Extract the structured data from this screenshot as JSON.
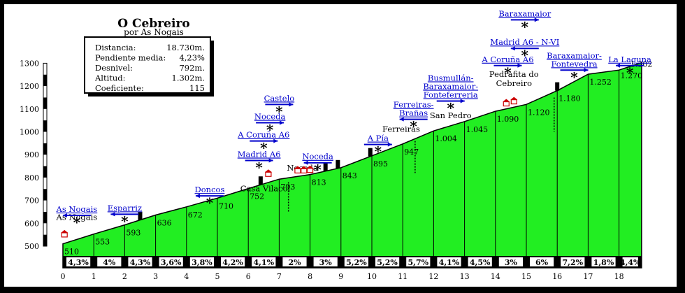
{
  "title": "O Cebreiro",
  "subtitle": "por As Nogais",
  "stats": [
    {
      "label": "Distancia:",
      "value": "18.730m."
    },
    {
      "label": "Pendiente media:",
      "value": "4,23%"
    },
    {
      "label": "Desnivel:",
      "value": "792m."
    },
    {
      "label": "Altitud:",
      "value": "1.302m."
    },
    {
      "label": "Coeficiente:",
      "value": "115"
    }
  ],
  "colors": {
    "background": "#000000",
    "panel": "#ffffff",
    "profile_fill": "#22ee22",
    "profile_stroke": "#000000",
    "link_blue": "#0000cc",
    "gradient_bar": "#000000",
    "gradient_box": "#ffffff"
  },
  "chart_data": {
    "type": "area",
    "title": "O Cebreiro",
    "xlabel": "",
    "ylabel": "",
    "xlim": [
      0,
      19
    ],
    "ylim": [
      500,
      1300
    ],
    "x_ticks": [
      "0",
      "1",
      "2",
      "3",
      "4",
      "5",
      "6",
      "7",
      "8",
      "9",
      "10",
      "11",
      "12",
      "13",
      "14",
      "15",
      "16",
      "17",
      "18"
    ],
    "y_ticks": [
      "500",
      "600",
      "700",
      "800",
      "900",
      "1000",
      "1100",
      "1200",
      "1300"
    ],
    "profile": [
      {
        "x": 0,
        "y": 510
      },
      {
        "x": 1,
        "y": 553
      },
      {
        "x": 2,
        "y": 593
      },
      {
        "x": 3,
        "y": 636
      },
      {
        "x": 4,
        "y": 672
      },
      {
        "x": 5,
        "y": 710
      },
      {
        "x": 6,
        "y": 752
      },
      {
        "x": 7,
        "y": 793
      },
      {
        "x": 8,
        "y": 813
      },
      {
        "x": 9,
        "y": 843
      },
      {
        "x": 10,
        "y": 895
      },
      {
        "x": 11,
        "y": 947
      },
      {
        "x": 12,
        "y": 1004
      },
      {
        "x": 13,
        "y": 1045
      },
      {
        "x": 14,
        "y": 1090
      },
      {
        "x": 15,
        "y": 1120
      },
      {
        "x": 16,
        "y": 1180
      },
      {
        "x": 17,
        "y": 1252
      },
      {
        "x": 18,
        "y": 1270
      },
      {
        "x": 18.73,
        "y": 1302
      }
    ],
    "point_labels": [
      "510",
      "553",
      "593",
      "636",
      "672",
      "710",
      "752",
      "793",
      "813",
      "843",
      "895",
      "947",
      "1.004",
      "1.045",
      "1.090",
      "1.120",
      "1.180",
      "1.252",
      "1.270",
      "1.302"
    ],
    "gradients": [
      {
        "km": 0,
        "label": "4,3%"
      },
      {
        "km": 1,
        "label": "4%"
      },
      {
        "km": 2,
        "label": "4,3%"
      },
      {
        "km": 3,
        "label": "3,6%"
      },
      {
        "km": 4,
        "label": "3,8%"
      },
      {
        "km": 5,
        "label": "4,2%"
      },
      {
        "km": 6,
        "label": "4,1%"
      },
      {
        "km": 7,
        "label": "2%"
      },
      {
        "km": 8,
        "label": "3%"
      },
      {
        "km": 9,
        "label": "5,2%"
      },
      {
        "km": 10,
        "label": "5,2%"
      },
      {
        "km": 11,
        "label": "5,7%"
      },
      {
        "km": 12,
        "label": "4,1%"
      },
      {
        "km": 13,
        "label": "4,5%"
      },
      {
        "km": 14,
        "label": "3%"
      },
      {
        "km": 15,
        "label": "6%"
      },
      {
        "km": 16,
        "label": "7,2%"
      },
      {
        "km": 17,
        "label": "1,8%"
      },
      {
        "km": 18,
        "label": "4,4%"
      }
    ],
    "places": [
      {
        "name": "As Nogais",
        "km": 0.45,
        "elev": 615
      },
      {
        "name": "Casa Vilacol",
        "km": 6.55,
        "elev": 740
      },
      {
        "name": "Noceda",
        "km": 7.75,
        "elev": 830
      },
      {
        "name": "Ferreiras",
        "km": 10.95,
        "elev": 1000
      },
      {
        "name": "San Pedro",
        "km": 12.55,
        "elev": 1060
      },
      {
        "name": "Pedrafita do Cebreiro",
        "km": 14.6,
        "elev": 1240
      }
    ],
    "links": [
      {
        "lines": [
          "As Nogais"
        ],
        "km": 0.45,
        "base_elev": 650,
        "arrow": "left"
      },
      {
        "lines": [
          "Esparriz"
        ],
        "km": 2.0,
        "base_elev": 655,
        "arrow": "left"
      },
      {
        "lines": [
          "Doncos"
        ],
        "km": 4.75,
        "base_elev": 735,
        "arrow": "left"
      },
      {
        "lines": [
          "Madrid A6"
        ],
        "km": 6.35,
        "base_elev": 890,
        "arrow": "right"
      },
      {
        "lines": [
          "A Coruña A6"
        ],
        "km": 6.5,
        "base_elev": 975,
        "arrow": "right"
      },
      {
        "lines": [
          "Noceda"
        ],
        "km": 6.7,
        "base_elev": 1055,
        "arrow": "right"
      },
      {
        "lines": [
          "Castelo"
        ],
        "km": 7.0,
        "base_elev": 1135,
        "arrow": "right"
      },
      {
        "lines": [
          "Noceda"
        ],
        "km": 8.25,
        "base_elev": 880,
        "arrow": "left"
      },
      {
        "lines": [
          "A Pía"
        ],
        "km": 10.2,
        "base_elev": 960,
        "arrow": "right"
      },
      {
        "lines": [
          "Ferreiras-",
          "Brañas"
        ],
        "km": 11.35,
        "base_elev": 1070,
        "arrow": "left"
      },
      {
        "lines": [
          "Busmullán-",
          "Baraxamaior-",
          "Fonteferreria"
        ],
        "km": 12.55,
        "base_elev": 1150,
        "arrow": "right"
      },
      {
        "lines": [
          "A Coruña A6"
        ],
        "km": 14.4,
        "base_elev": 1305,
        "arrow": "right"
      },
      {
        "lines": [
          "Madrid A6 - N-VI"
        ],
        "km": 14.95,
        "base_elev": 1380,
        "arrow": "left"
      },
      {
        "lines": [
          "Baraxamaior"
        ],
        "km": 14.95,
        "base_elev": 1505,
        "arrow": "right"
      },
      {
        "lines": [
          "Baraxamaior-",
          "Fontevedra"
        ],
        "km": 16.55,
        "base_elev": 1285,
        "arrow": "right"
      },
      {
        "lines": [
          "La Laguna"
        ],
        "km": 18.35,
        "base_elev": 1305,
        "arrow": "left"
      }
    ]
  }
}
